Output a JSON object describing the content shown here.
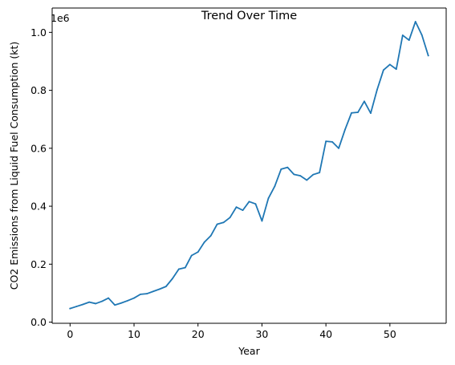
{
  "chart_data": {
    "type": "line",
    "title": "Trend Over Time",
    "xlabel": "Year",
    "ylabel": "CO2 Emissions from Liquid Fuel Consumption (kt)",
    "y_offset_text": "1e6",
    "x_ticks": [
      "0",
      "10",
      "20",
      "30",
      "40",
      "50"
    ],
    "y_ticks": [
      "0.0",
      "0.2",
      "0.4",
      "0.6",
      "0.8",
      "1.0"
    ],
    "xlim": [
      -2.8,
      58.8
    ],
    "ylim": [
      -0.004,
      1.084
    ],
    "grid": false,
    "series": [
      {
        "color": "#1f77b4",
        "x": [
          0,
          1,
          2,
          3,
          4,
          5,
          6,
          7,
          8,
          9,
          10,
          11,
          12,
          13,
          14,
          15,
          16,
          17,
          18,
          19,
          20,
          21,
          22,
          23,
          24,
          25,
          26,
          27,
          28,
          29,
          30,
          31,
          32,
          33,
          34,
          35,
          36,
          37,
          38,
          39,
          40,
          41,
          42,
          43,
          44,
          45,
          46,
          47,
          48,
          49,
          50,
          51,
          52,
          53,
          54,
          55,
          56
        ],
        "y": [
          0.047,
          0.054,
          0.061,
          0.069,
          0.064,
          0.072,
          0.083,
          0.059,
          0.066,
          0.074,
          0.083,
          0.096,
          0.098,
          0.106,
          0.114,
          0.123,
          0.15,
          0.183,
          0.188,
          0.23,
          0.242,
          0.276,
          0.298,
          0.338,
          0.344,
          0.361,
          0.397,
          0.386,
          0.416,
          0.408,
          0.349,
          0.427,
          0.469,
          0.528,
          0.534,
          0.51,
          0.505,
          0.49,
          0.509,
          0.516,
          0.624,
          0.622,
          0.6,
          0.665,
          0.722,
          0.724,
          0.762,
          0.721,
          0.802,
          0.87,
          0.889,
          0.873,
          0.99,
          0.973,
          1.037,
          0.991,
          0.92
        ]
      }
    ]
  }
}
